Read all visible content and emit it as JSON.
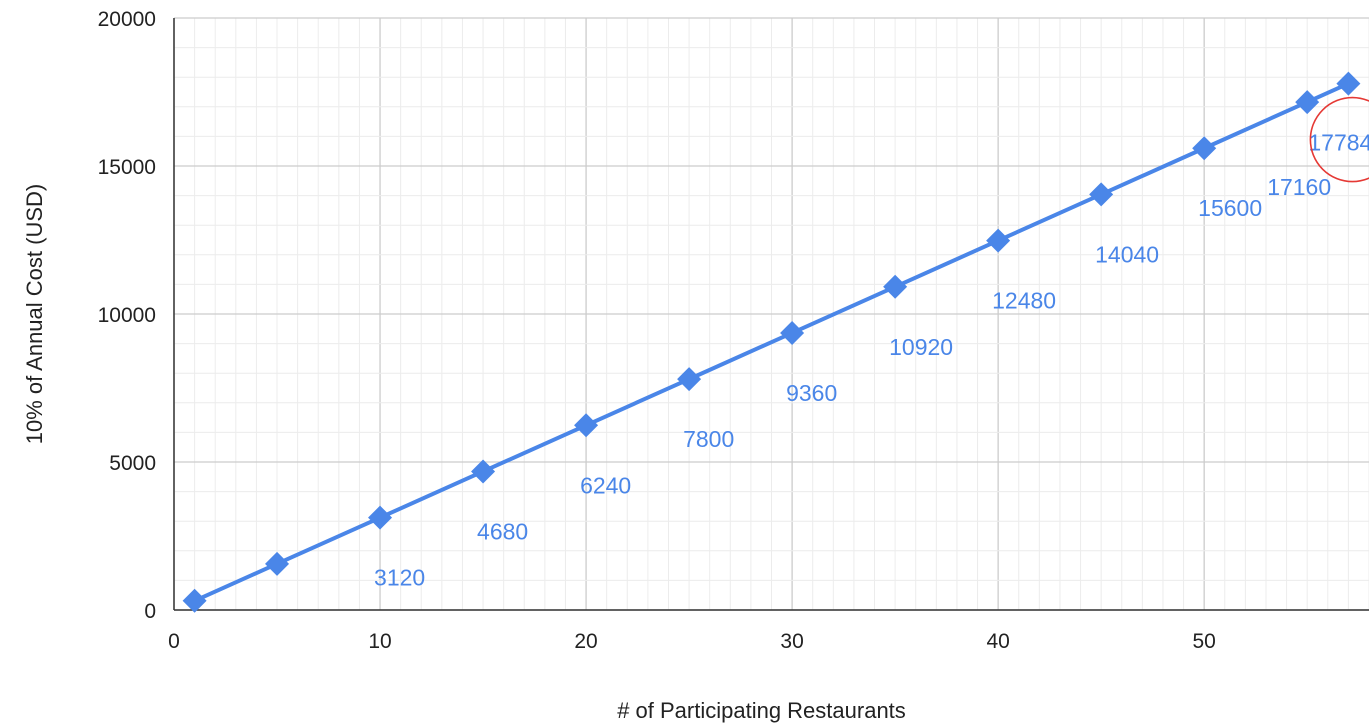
{
  "chart_data": {
    "type": "line",
    "title": "",
    "xlabel": "# of Participating Restaurants",
    "ylabel": "10% of Annual Cost (USD)",
    "xlim": [
      0,
      58
    ],
    "ylim": [
      0,
      20000
    ],
    "x_ticks": [
      "0",
      "10",
      "20",
      "30",
      "40",
      "50"
    ],
    "y_ticks": [
      "0",
      "5000",
      "10000",
      "15000",
      "20000"
    ],
    "grid": true,
    "legend": "none",
    "series": [
      {
        "x": [
          1,
          5,
          10,
          15,
          20,
          25,
          30,
          35,
          40,
          45,
          50,
          55,
          57
        ],
        "values": [
          312,
          1560,
          3120,
          4680,
          6240,
          7800,
          9360,
          10920,
          12480,
          14040,
          15600,
          17160,
          17784
        ],
        "marker": "diamond",
        "color": "#4a86e8"
      }
    ],
    "data_labels": [
      {
        "x": 10,
        "text": "3120"
      },
      {
        "x": 15,
        "text": "4680"
      },
      {
        "x": 20,
        "text": "6240"
      },
      {
        "x": 25,
        "text": "7800"
      },
      {
        "x": 30,
        "text": "9360"
      },
      {
        "x": 35,
        "text": "10920"
      },
      {
        "x": 40,
        "text": "12480"
      },
      {
        "x": 45,
        "text": "14040"
      },
      {
        "x": 50,
        "text": "15600"
      },
      {
        "x": 55,
        "text": "17160"
      },
      {
        "x": 57,
        "text": "17784"
      }
    ],
    "annotations": [
      {
        "type": "circle",
        "target_x": 57,
        "color": "#e53935"
      }
    ]
  }
}
